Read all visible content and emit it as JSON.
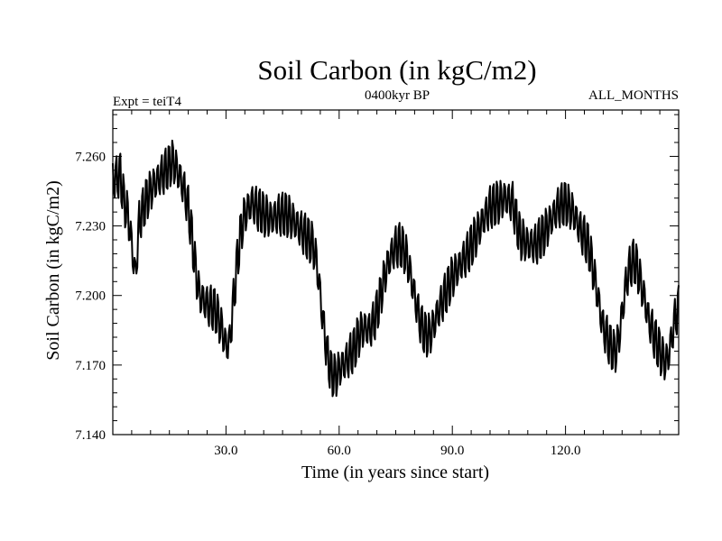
{
  "chart_data": {
    "type": "line",
    "title": "Soil Carbon (in kgC/m2)",
    "subtitle_left": "Expt = teiT4",
    "subtitle_center": "0400kyr BP",
    "subtitle_right": "ALL_MONTHS",
    "xlabel": "Time (in years since start)",
    "ylabel": "Soil Carbon (in kgC/m2)",
    "xlim": [
      0,
      150
    ],
    "ylim": [
      7.14,
      7.28
    ],
    "x_ticks": [
      {
        "value": 30,
        "label": "30.0"
      },
      {
        "value": 60,
        "label": "60.0"
      },
      {
        "value": 90,
        "label": "90.0"
      },
      {
        "value": 120,
        "label": "120.0"
      }
    ],
    "y_ticks": [
      {
        "value": 7.14,
        "label": "7.140"
      },
      {
        "value": 7.17,
        "label": "7.170"
      },
      {
        "value": 7.2,
        "label": "7.200"
      },
      {
        "value": 7.23,
        "label": "7.230"
      },
      {
        "value": 7.26,
        "label": "7.260"
      }
    ],
    "grid": false,
    "line_color": "#000000",
    "series": [
      {
        "points": [
          [
            0,
            7.25
          ],
          [
            2,
            7.252
          ],
          [
            3,
            7.24
          ],
          [
            4,
            7.235
          ],
          [
            5,
            7.222
          ],
          [
            6,
            7.208
          ],
          [
            7,
            7.232
          ],
          [
            9,
            7.242
          ],
          [
            11,
            7.248
          ],
          [
            13,
            7.252
          ],
          [
            15,
            7.256
          ],
          [
            16,
            7.258
          ],
          [
            17,
            7.254
          ],
          [
            18,
            7.25
          ],
          [
            19,
            7.245
          ],
          [
            20,
            7.238
          ],
          [
            21,
            7.225
          ],
          [
            22,
            7.21
          ],
          [
            23,
            7.2
          ],
          [
            24,
            7.198
          ],
          [
            25,
            7.196
          ],
          [
            26,
            7.195
          ],
          [
            27,
            7.194
          ],
          [
            28,
            7.19
          ],
          [
            29,
            7.185
          ],
          [
            30,
            7.178
          ],
          [
            31,
            7.18
          ],
          [
            32,
            7.198
          ],
          [
            33,
            7.215
          ],
          [
            34,
            7.228
          ],
          [
            35,
            7.235
          ],
          [
            36,
            7.238
          ],
          [
            37,
            7.24
          ],
          [
            38,
            7.238
          ],
          [
            40,
            7.235
          ],
          [
            42,
            7.233
          ],
          [
            44,
            7.235
          ],
          [
            46,
            7.235
          ],
          [
            48,
            7.232
          ],
          [
            50,
            7.228
          ],
          [
            51,
            7.226
          ],
          [
            52,
            7.224
          ],
          [
            53,
            7.222
          ],
          [
            54,
            7.215
          ],
          [
            55,
            7.2
          ],
          [
            56,
            7.185
          ],
          [
            57,
            7.173
          ],
          [
            58,
            7.166
          ],
          [
            59,
            7.165
          ],
          [
            60,
            7.168
          ],
          [
            62,
            7.172
          ],
          [
            64,
            7.177
          ],
          [
            65,
            7.182
          ],
          [
            66,
            7.185
          ],
          [
            67,
            7.186
          ],
          [
            68,
            7.185
          ],
          [
            69,
            7.188
          ],
          [
            70,
            7.193
          ],
          [
            71,
            7.2
          ],
          [
            72,
            7.208
          ],
          [
            73,
            7.214
          ],
          [
            74,
            7.218
          ],
          [
            75,
            7.221
          ],
          [
            76,
            7.222
          ],
          [
            77,
            7.22
          ],
          [
            78,
            7.216
          ],
          [
            79,
            7.208
          ],
          [
            80,
            7.2
          ],
          [
            81,
            7.192
          ],
          [
            82,
            7.186
          ],
          [
            83,
            7.183
          ],
          [
            84,
            7.183
          ],
          [
            85,
            7.187
          ],
          [
            86,
            7.192
          ],
          [
            88,
            7.2
          ],
          [
            90,
            7.208
          ],
          [
            92,
            7.213
          ],
          [
            94,
            7.218
          ],
          [
            96,
            7.225
          ],
          [
            98,
            7.232
          ],
          [
            100,
            7.238
          ],
          [
            102,
            7.24
          ],
          [
            104,
            7.242
          ],
          [
            106,
            7.24
          ],
          [
            107,
            7.232
          ],
          [
            108,
            7.225
          ],
          [
            110,
            7.222
          ],
          [
            112,
            7.222
          ],
          [
            114,
            7.226
          ],
          [
            116,
            7.232
          ],
          [
            118,
            7.238
          ],
          [
            120,
            7.24
          ],
          [
            122,
            7.236
          ],
          [
            124,
            7.228
          ],
          [
            126,
            7.222
          ],
          [
            127,
            7.214
          ],
          [
            128,
            7.205
          ],
          [
            129,
            7.195
          ],
          [
            130,
            7.186
          ],
          [
            131,
            7.182
          ],
          [
            132,
            7.178
          ],
          [
            133,
            7.175
          ],
          [
            134,
            7.18
          ],
          [
            135,
            7.192
          ],
          [
            136,
            7.205
          ],
          [
            137,
            7.212
          ],
          [
            138,
            7.215
          ],
          [
            139,
            7.212
          ],
          [
            140,
            7.205
          ],
          [
            141,
            7.198
          ],
          [
            142,
            7.19
          ],
          [
            143,
            7.185
          ],
          [
            144,
            7.18
          ],
          [
            145,
            7.176
          ],
          [
            146,
            7.172
          ],
          [
            147,
            7.172
          ],
          [
            148,
            7.18
          ],
          [
            149,
            7.19
          ],
          [
            150,
            7.195
          ]
        ],
        "annual_cycle_amplitude": 0.007
      }
    ]
  }
}
